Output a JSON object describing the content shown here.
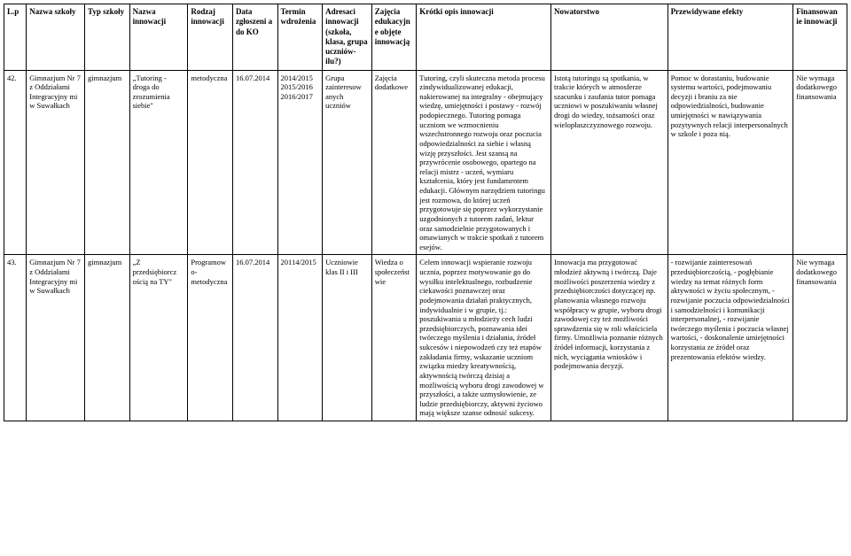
{
  "table": {
    "columns": [
      {
        "key": "lp",
        "label": "L.p"
      },
      {
        "key": "nazwa_szkoly",
        "label": "Nazwa szkoły"
      },
      {
        "key": "typ_szkoly",
        "label": "Typ szkoły"
      },
      {
        "key": "nazwa_innowacji",
        "label": "Nazwa innowacji"
      },
      {
        "key": "rodzaj_innowacji",
        "label": "Rodzaj innowacji"
      },
      {
        "key": "data_zgloszenia",
        "label": "Data zgłoszeni a do KO"
      },
      {
        "key": "termin_wdrozenia",
        "label": "Termin wdrożenia"
      },
      {
        "key": "adresaci",
        "label": "Adresaci innowacji (szkoła, klasa, grupa uczniów-ilu?)"
      },
      {
        "key": "zajecia_objete",
        "label": "Zajęcia edukacyjn e objęte innowacją"
      },
      {
        "key": "opis",
        "label": "Krótki opis innowacji"
      },
      {
        "key": "nowatorstwo",
        "label": "Nowatorstwo"
      },
      {
        "key": "efekty",
        "label": "Przewidywane efekty"
      },
      {
        "key": "finansowanie",
        "label": "Finansowan ie innowacji"
      }
    ],
    "rows": [
      {
        "lp": "42.",
        "nazwa_szkoly": "Gimnazjum Nr 7 z Oddziałami Integracyjny mi w Suwałkach",
        "typ_szkoly": "gimnazjum",
        "nazwa_innowacji": "„Tutoring - droga do zrozumienia siebie\"",
        "rodzaj_innowacji": "metodyczna",
        "data_zgloszenia": "16.07.2014",
        "termin_wdrozenia": "2014/2015 2015/2016 2016/2017",
        "adresaci": "Grupa zainteresow anych uczniów",
        "zajecia_objete": "Zajęcia dodatkowe",
        "opis": "Tutoring, czyli skuteczna metoda procesu zindywidualizowanej edukacji, nakierowanej na integralny - obejmujący wiedzę, umiejętności i postawy - rozwój podopiecznego. Tutoring pomaga uczniom we wzmocnieniu wszechstronnego rozwoju oraz poczucia odpowiedzialności za siebie i własną wizję przyszłości. Jest szansą na przywrócenie osobowego, opartego na relacji mistrz - uczeń, wymiaru kształcenia, który jest fundamentem edukacji. Głównym narzędziem tutoringu jest rozmowa, do której uczeń przygotowuje się poprzez wykorzystanie uzgodnionych z tutorem zadań, lektur oraz samodzielnie przygotowanych i omawianych w trakcie spotkań z tutorem esejów.",
        "nowatorstwo": "Istotą tutoringu są spotkania, w trakcie których w atmosferze szacunku i zaufania tutor pomaga uczniowi w poszukiwaniu własnej drogi do wiedzy, tożsamości oraz wielopłaszczyznowego rozwoju.",
        "efekty": "Pomoc w dorastaniu, budowanie systemu wartości, podejmowaniu decyzji i braniu za nie odpowiedzialności, budowanie umiejętności w nawiązywania pozytywnych relacji interpersonalnych w szkole i poza nią.",
        "finansowanie": "Nie wymaga dodatkowego finansowania"
      },
      {
        "lp": "43.",
        "nazwa_szkoly": "Gimnazjum Nr 7 z Oddziałami Integracyjny mi w Suwałkach",
        "typ_szkoly": "gimnazjum",
        "nazwa_innowacji": "„Z przedsiębiorcz ością na TY\"",
        "rodzaj_innowacji": "Programow o-metodyczna",
        "data_zgloszenia": "16.07.2014",
        "termin_wdrozenia": "20114/2015",
        "adresaci": "Uczniowie klas II i III",
        "zajecia_objete": "Wiedza o społeczeńst wie",
        "opis": "Celem innowacji wspieranie rozwoju ucznia, poprzez motywowanie go do wysiłku intelektualnego, rozbudzenie ciekawości poznawczej oraz podejmowania działań praktycznych, indywidualnie i w grupie, tj.: poszukiwania u młodzieży cech ludzi przedsiębiorczych, poznawania idei twórczego myślenia i działania, źródeł sukcesów i niepowodzeń czy też etapów zakładania firmy, wskazanie uczniom związku miedzy kreatywnością, aktywnością twórczą dzisiaj a możliwością wyboru drogi zawodowej w przyszłości, a także uzmysłowienie, ze ludzie przedsiębiorczy, aktywni życiowo mają większe szanse odnosić sukcesy.",
        "nowatorstwo": "Innowacja ma przygotować młodzież aktywną i twórczą. Daje możliwości poszerzenia wiedzy z przedsiębiorczości dotyczącej np. planowania własnego rozwoju współpracy w grupie, wyboru drogi zawodowej czy też możliwości sprawdzenia się w roli właściciela firmy. Umożliwia poznanie różnych źródeł informacji, korzystania z nich, wyciągania wniosków i podejmowania decyzji.",
        "efekty": "- rozwijanie zainteresowań przedsiębiorczością,\n- pogłębianie wiedzy na temat różnych form aktywności w życiu społecznym,\n- rozwijanie poczucia odpowiedzialności i samodzielności i komunikacji interpersonalnej,\n- rozwijanie twórczego myślenia i poczucia własnej wartości,\n- doskonalenie umiejętności korzystania ze źródeł oraz prezentowania efektów wiedzy.",
        "finansowanie": "Nie wymaga dodatkowego finansowania"
      }
    ],
    "style": {
      "border_color": "#000000",
      "text_color": "#000000",
      "background_color": "#ffffff",
      "font_family": "Times New Roman",
      "header_fontsize_pt": 9,
      "body_fontsize_pt": 8.5,
      "col_widths_pct": [
        2.5,
        6.5,
        5,
        6.5,
        5,
        5,
        5,
        5.5,
        5,
        15,
        13,
        14,
        6
      ]
    }
  }
}
